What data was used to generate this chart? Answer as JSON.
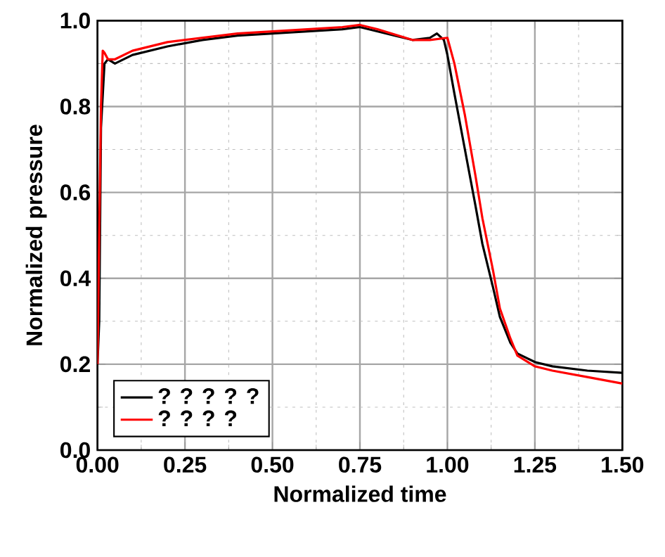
{
  "chart_data": {
    "type": "line",
    "xlabel": "Normalized time",
    "ylabel": "Normalized pressure",
    "xlim": [
      0,
      1.5
    ],
    "ylim": [
      0,
      1.0
    ],
    "xticks": [
      {
        "value": 0,
        "label": "0.00"
      },
      0.25,
      {
        "value": 0.5,
        "label": "0.50"
      },
      0.75,
      {
        "value": 1,
        "label": "1.00"
      },
      1.25,
      {
        "value": 1.5,
        "label": "1.50"
      }
    ],
    "yticks": [
      {
        "value": 0,
        "label": "0.0"
      },
      0.2,
      0.4,
      0.6,
      0.8,
      {
        "value": 1,
        "label": "1.0"
      }
    ],
    "grid": true,
    "legend": "bottom left",
    "line_style": "solid",
    "marker": "none",
    "series": [
      {
        "name": "? ? ? ? ?",
        "color": "#000000",
        "x": [
          0,
          0.005,
          0.01,
          0.02,
          0.03,
          0.05,
          0.1,
          0.2,
          0.3,
          0.4,
          0.5,
          0.6,
          0.7,
          0.75,
          0.8,
          0.85,
          0.9,
          0.95,
          0.97,
          0.99,
          1.0,
          1.02,
          1.05,
          1.08,
          1.1,
          1.13,
          1.15,
          1.18,
          1.2,
          1.25,
          1.3,
          1.4,
          1.5
        ],
        "values": [
          0.2,
          0.3,
          0.75,
          0.9,
          0.91,
          0.9,
          0.92,
          0.94,
          0.955,
          0.965,
          0.97,
          0.975,
          0.98,
          0.985,
          0.975,
          0.965,
          0.955,
          0.96,
          0.97,
          0.955,
          0.92,
          0.83,
          0.7,
          0.57,
          0.48,
          0.38,
          0.31,
          0.25,
          0.225,
          0.205,
          0.195,
          0.185,
          0.18
        ]
      },
      {
        "name": "? ? ? ?",
        "color": "#ff0000",
        "x": [
          0,
          0.01,
          0.015,
          0.02,
          0.03,
          0.05,
          0.1,
          0.2,
          0.3,
          0.4,
          0.5,
          0.6,
          0.7,
          0.75,
          0.8,
          0.9,
          0.95,
          1.0,
          1.02,
          1.05,
          1.08,
          1.1,
          1.13,
          1.15,
          1.18,
          1.2,
          1.25,
          1.3,
          1.4,
          1.5
        ],
        "values": [
          0.2,
          0.8,
          0.93,
          0.925,
          0.91,
          0.91,
          0.93,
          0.95,
          0.96,
          0.97,
          0.975,
          0.98,
          0.985,
          0.99,
          0.98,
          0.955,
          0.955,
          0.96,
          0.9,
          0.78,
          0.64,
          0.54,
          0.42,
          0.33,
          0.26,
          0.22,
          0.195,
          0.185,
          0.17,
          0.155
        ]
      }
    ]
  }
}
